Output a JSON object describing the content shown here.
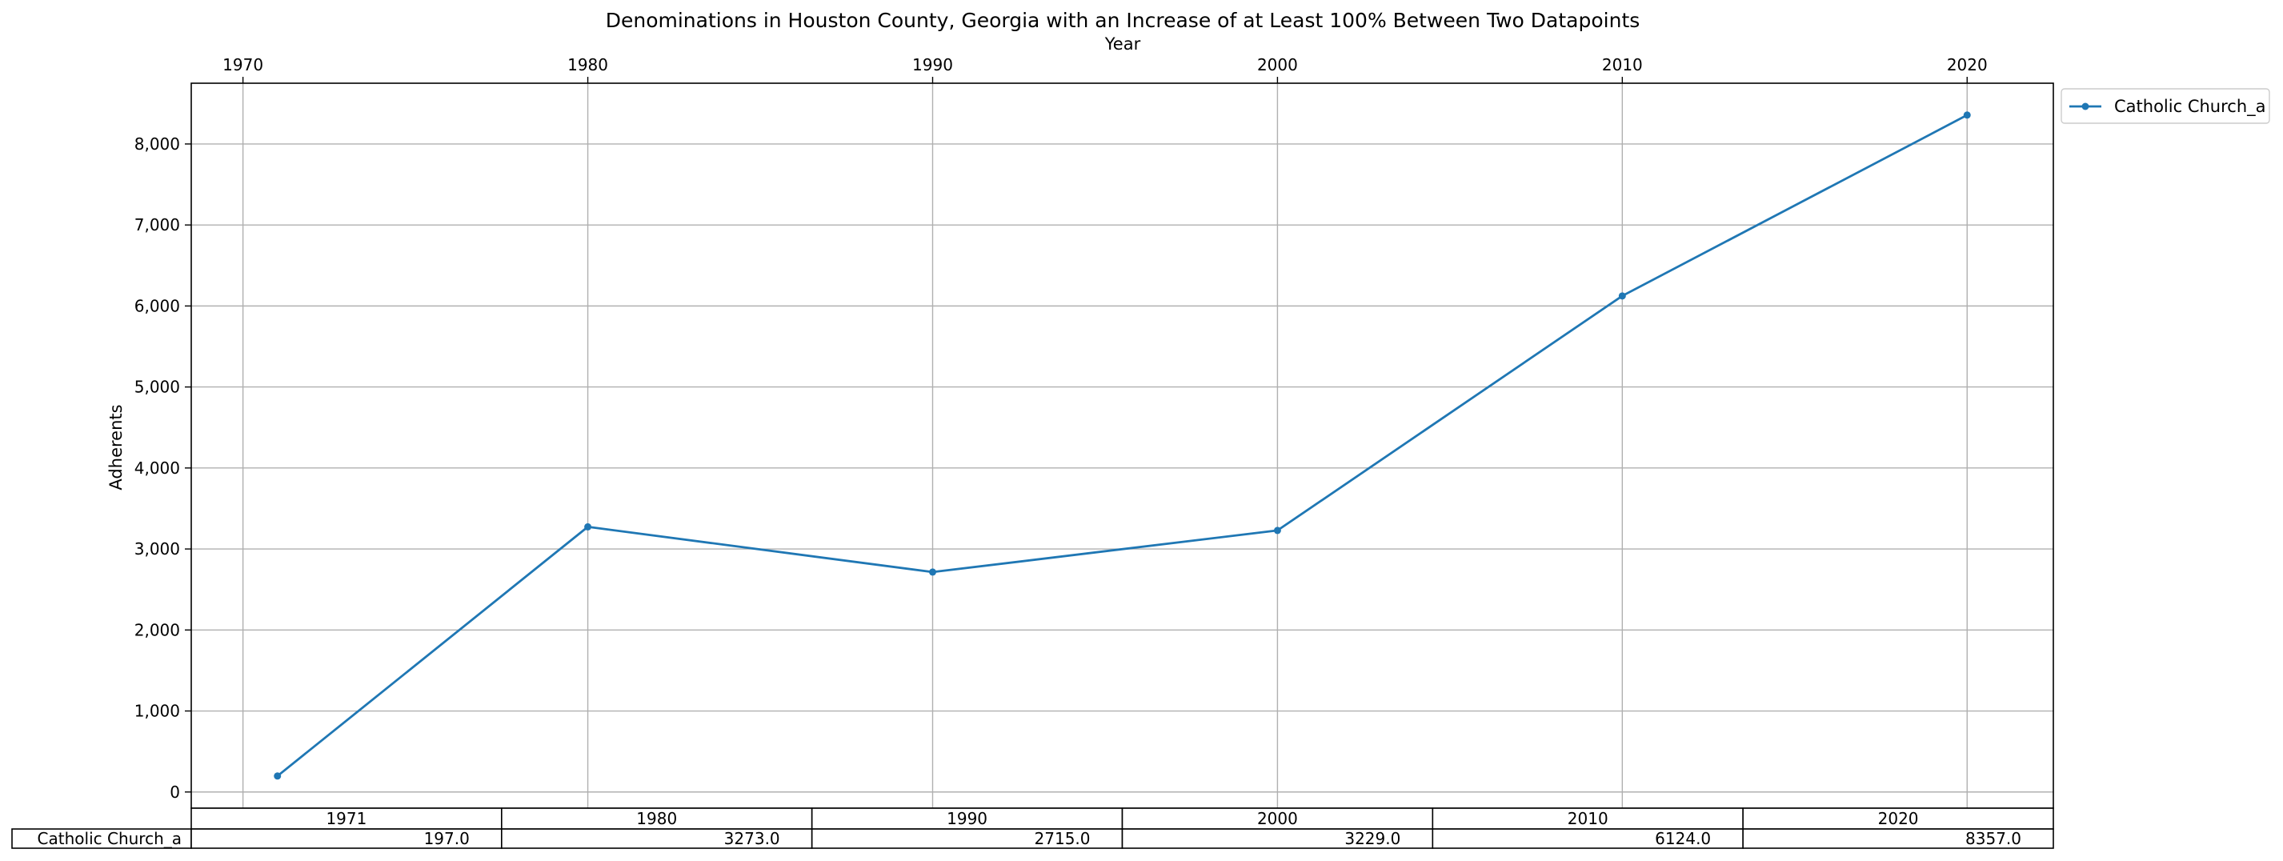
{
  "chart_data": {
    "type": "line",
    "title": "Denominations in Houston County, Georgia with an Increase of at Least 100% Between Two Datapoints",
    "xlabel": "Year",
    "ylabel": "Adherents",
    "xlim": [
      1968.5,
      2022.5
    ],
    "ylim": [
      -200,
      8750
    ],
    "x_ticks": [
      1970,
      1980,
      1990,
      2000,
      2010,
      2020
    ],
    "y_ticks": [
      0,
      1000,
      2000,
      3000,
      4000,
      5000,
      6000,
      7000,
      8000
    ],
    "y_tick_labels": [
      "0",
      "1,000",
      "2,000",
      "3,000",
      "4,000",
      "5,000",
      "6,000",
      "7,000",
      "8,000"
    ],
    "x_axis_position": "top",
    "grid": true,
    "legend_position": "outside-top-right",
    "series": [
      {
        "name": "Catholic Church_a",
        "color": "#1f77b4",
        "x": [
          1971,
          1980,
          1990,
          2000,
          2010,
          2020
        ],
        "values": [
          197,
          3273,
          2715,
          3229,
          6124,
          8357
        ]
      }
    ],
    "table": {
      "columns": [
        "1971",
        "1980",
        "1990",
        "2000",
        "2010",
        "2020"
      ],
      "rows": [
        {
          "label": "Catholic Church_a",
          "cells": [
            "197.0",
            "3273.0",
            "2715.0",
            "3229.0",
            "6124.0",
            "8357.0"
          ]
        }
      ]
    }
  }
}
